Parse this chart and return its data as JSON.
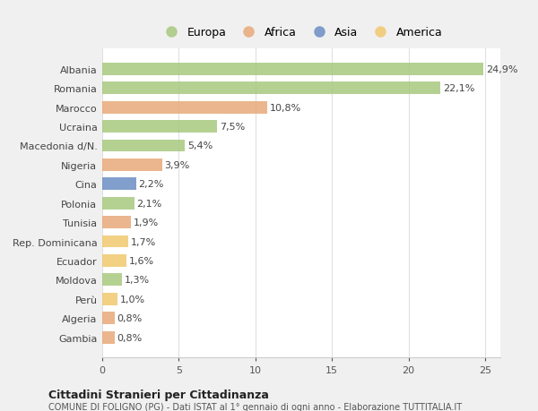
{
  "categories": [
    "Albania",
    "Romania",
    "Marocco",
    "Ucraina",
    "Macedonia d/N.",
    "Nigeria",
    "Cina",
    "Polonia",
    "Tunisia",
    "Rep. Dominicana",
    "Ecuador",
    "Moldova",
    "Perù",
    "Algeria",
    "Gambia"
  ],
  "values": [
    24.9,
    22.1,
    10.8,
    7.5,
    5.4,
    3.9,
    2.2,
    2.1,
    1.9,
    1.7,
    1.6,
    1.3,
    1.0,
    0.8,
    0.8
  ],
  "labels": [
    "24,9%",
    "22,1%",
    "10,8%",
    "7,5%",
    "5,4%",
    "3,9%",
    "2,2%",
    "2,1%",
    "1,9%",
    "1,7%",
    "1,6%",
    "1,3%",
    "1,0%",
    "0,8%",
    "0,8%"
  ],
  "continents": [
    "Europa",
    "Europa",
    "Africa",
    "Europa",
    "Europa",
    "Africa",
    "Asia",
    "Europa",
    "Africa",
    "America",
    "America",
    "Europa",
    "America",
    "Africa",
    "Africa"
  ],
  "colors": {
    "Europa": "#a8c97f",
    "Africa": "#e8a97a",
    "Asia": "#6b8dc4",
    "America": "#f0c96e"
  },
  "legend_order": [
    "Europa",
    "Africa",
    "Asia",
    "America"
  ],
  "figure_bg": "#f0f0f0",
  "plot_bg": "#ffffff",
  "title_bold": "Cittadini Stranieri per Cittadinanza",
  "subtitle": "COMUNE DI FOLIGNO (PG) - Dati ISTAT al 1° gennaio di ogni anno - Elaborazione TUTTITALIA.IT",
  "xlim": [
    0,
    26
  ],
  "xticks": [
    0,
    5,
    10,
    15,
    20,
    25
  ],
  "bar_height": 0.65,
  "bar_alpha": 0.85
}
